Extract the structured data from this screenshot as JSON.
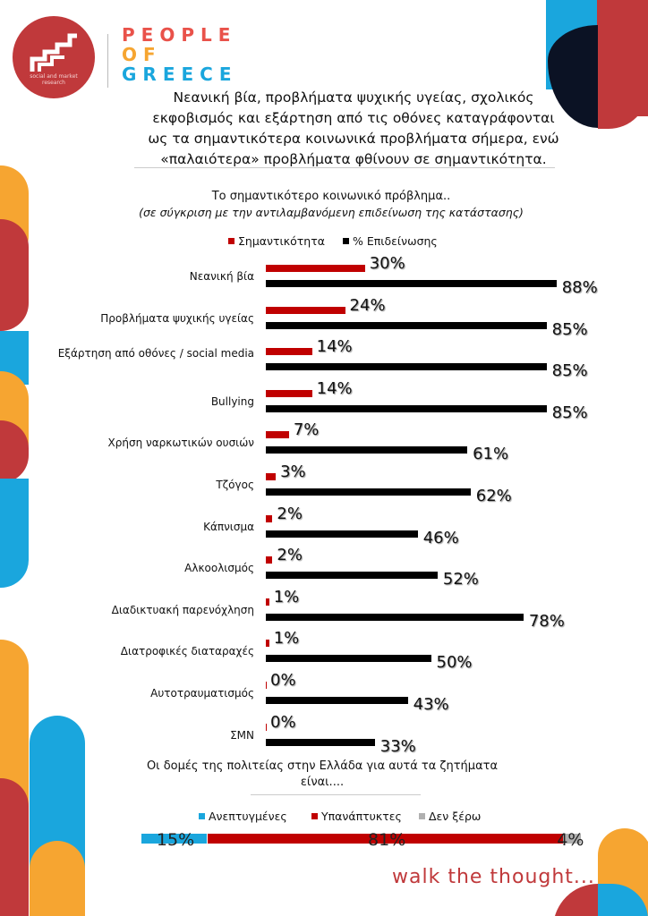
{
  "logo": {
    "subtitle": "social and market research"
  },
  "brand": {
    "line1": "PEOPLE",
    "line2": "OF",
    "line3": "GREECE"
  },
  "headline": "Νεανική βία, προβλήματα ψυχικής υγείας, σχολικός εκφοβισμός και εξάρτηση από τις οθόνες καταγράφονται ως τα σημαντικότερα κοινωνικά προβλήματα σήμερα, ενώ «παλαιότερα» προβλήματα φθίνουν σε σημαντικότητα.",
  "tagline": "walk the thought...",
  "colors": {
    "red": "#c00000",
    "black": "#000000",
    "blue": "#1aa6dd",
    "grey": "#b0b0b0",
    "orange": "#f6a531",
    "brand_red": "#c0393b"
  },
  "chart_data": [
    {
      "type": "bar",
      "orientation": "horizontal",
      "title": "Το σημαντικότερο κοινωνικό πρόβλημα..",
      "subtitle": "(σε σύγκριση με την αντιλαμβανόμενη επιδείνωση της κατάστασης)",
      "legend_position": "top",
      "categories": [
        "Νεανική βία",
        "Προβλήματα ψυχικής υγείας",
        "Εξάρτηση από οθόνες / social media",
        "Bullying",
        "Χρήση ναρκωτικών ουσιών",
        "Τζόγος",
        "Κάπνισμα",
        "Αλκοολισμός",
        "Διαδικτυακή παρενόχληση",
        "Διατροφικές διαταραχές",
        "Αυτοτραυματισμός",
        "ΣΜΝ"
      ],
      "series": [
        {
          "name": "Σημαντικότητα",
          "color": "#c00000",
          "values": [
            30,
            24,
            14,
            14,
            7,
            3,
            2,
            2,
            1,
            1,
            0,
            0
          ],
          "labels": [
            "30%",
            "24%",
            "14%",
            "14%",
            "7%",
            "3%",
            "2%",
            "2%",
            "1%",
            "1%",
            "0%",
            "0%"
          ]
        },
        {
          "name": "% Επιδείνωσης",
          "color": "#000000",
          "values": [
            88,
            85,
            85,
            85,
            61,
            62,
            46,
            52,
            78,
            50,
            43,
            33
          ],
          "labels": [
            "88%",
            "85%",
            "85%",
            "85%",
            "61%",
            "62%",
            "46%",
            "52%",
            "78%",
            "50%",
            "43%",
            "33%"
          ]
        }
      ],
      "xlim": [
        0,
        100
      ]
    },
    {
      "type": "bar",
      "orientation": "stacked-horizontal",
      "title": "Οι δομές της πολιτείας στην Ελλάδα για αυτά τα ζητήματα είναι....",
      "legend_position": "top",
      "series": [
        {
          "name": "Ανεπτυγμένες",
          "color": "#1aa6dd",
          "value": 15,
          "label": "15%"
        },
        {
          "name": "Υπανάπτυκτες",
          "color": "#c00000",
          "value": 81,
          "label": "81%"
        },
        {
          "name": "Δεν ξέρω",
          "color": "#b0b0b0",
          "value": 4,
          "label": "4%"
        }
      ]
    }
  ]
}
